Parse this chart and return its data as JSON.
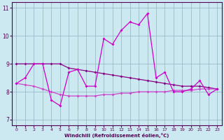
{
  "bg_color": "#cce8f0",
  "grid_color": "#99bbcc",
  "line_color_main": "#cc00cc",
  "line_color_upper": "#880088",
  "line_color_lower": "#cc44cc",
  "hours": [
    0,
    1,
    2,
    3,
    4,
    5,
    6,
    7,
    8,
    9,
    10,
    11,
    12,
    13,
    14,
    15,
    16,
    17,
    18,
    19,
    20,
    21,
    22,
    23
  ],
  "temp_actual": [
    8.3,
    8.5,
    9.0,
    9.0,
    7.7,
    7.5,
    8.7,
    8.8,
    8.2,
    8.2,
    9.9,
    9.7,
    10.2,
    10.5,
    10.4,
    10.8,
    8.5,
    8.7,
    8.0,
    8.0,
    8.1,
    8.4,
    7.9,
    8.1
  ],
  "temp_upper": [
    9.0,
    9.0,
    9.0,
    9.0,
    9.0,
    9.0,
    8.85,
    8.8,
    8.75,
    8.7,
    8.65,
    8.6,
    8.55,
    8.5,
    8.45,
    8.4,
    8.35,
    8.3,
    8.25,
    8.2,
    8.2,
    8.2,
    8.15,
    8.1
  ],
  "temp_lower": [
    8.3,
    8.25,
    8.2,
    8.1,
    8.0,
    7.9,
    7.85,
    7.85,
    7.85,
    7.85,
    7.9,
    7.9,
    7.95,
    7.95,
    8.0,
    8.0,
    8.0,
    8.0,
    8.05,
    8.05,
    8.05,
    8.1,
    8.1,
    8.1
  ],
  "xlabel": "Windchill (Refroidissement éolien,°C)",
  "ylim": [
    6.8,
    11.2
  ],
  "yticks": [
    7,
    8,
    9,
    10,
    11
  ],
  "xticks": [
    0,
    1,
    2,
    3,
    4,
    5,
    6,
    7,
    8,
    9,
    10,
    11,
    12,
    13,
    14,
    15,
    16,
    17,
    18,
    19,
    20,
    21,
    22,
    23
  ]
}
